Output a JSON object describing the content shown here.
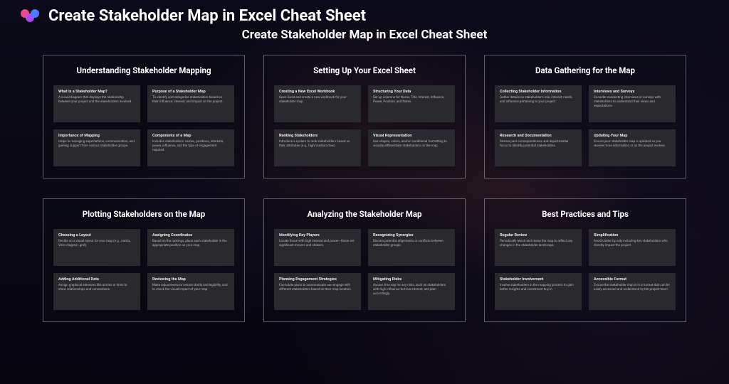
{
  "header": {
    "title": "Create Stakeholder Map in Excel Cheat Sheet",
    "subtitle": "Create Stakeholder Map in Excel Cheat Sheet"
  },
  "logo": {
    "colors": {
      "left": "#e94b8b",
      "mid": "#b84bff",
      "right": "#4b7bff"
    }
  },
  "panels": [
    {
      "title": "Understanding Stakeholder Mapping",
      "cards": [
        {
          "title": "What is a Stakeholder Map?",
          "body": "A visual diagram that displays the relationship between your project and the stakeholders involved."
        },
        {
          "title": "Purpose of a Stakeholder Map",
          "body": "To identify and categorize stakeholders based on their influence, interest, and impact on the project."
        },
        {
          "title": "Importance of Mapping",
          "body": "Helps in managing expectations, communication, and gaining support from various stakeholder groups."
        },
        {
          "title": "Components of a Map",
          "body": "Includes stakeholders' names, positions, interests, power, influence, and the type of engagement required."
        }
      ]
    },
    {
      "title": "Setting Up Your Excel Sheet",
      "cards": [
        {
          "title": "Creating a New Excel Workbook",
          "body": "Open Excel and create a new workbook for your stakeholder map."
        },
        {
          "title": "Structuring Your Data",
          "body": "Set up columns for Name, Title, Interest, Influence, Power, Position, and Notes."
        },
        {
          "title": "Ranking Stakeholders",
          "body": "Introduce a system to rank stakeholders based on their attributes (e.g., high/medium/low)."
        },
        {
          "title": "Visual Representation",
          "body": "Use shapes, colors, and/or conditional formatting to visually differentiate stakeholders on the map."
        }
      ]
    },
    {
      "title": "Data Gathering for the Map",
      "cards": [
        {
          "title": "Collecting Stakeholder Information",
          "body": "Gather details on stakeholder's role, interest, needs, and influence pertaining to your project."
        },
        {
          "title": "Interviews and Surveys",
          "body": "Consider conducting interviews or surveys with stakeholders to understand their views and expectations."
        },
        {
          "title": "Research and Documentation",
          "body": "Review past correspondences and departmental focus to identify potential stakeholders."
        },
        {
          "title": "Updating Your Map",
          "body": "Ensure your stakeholder map is updated as you receive more information or as the project evolves."
        }
      ]
    },
    {
      "title": "Plotting Stakeholders on the Map",
      "cards": [
        {
          "title": "Choosing a Layout",
          "body": "Decide on a visual layout for your map (e.g., matrix, Venn diagram, grid)."
        },
        {
          "title": "Assigning Coordinates",
          "body": "Based on the rankings, place each stakeholder in the appropriate position on your map."
        },
        {
          "title": "Adding Additional Data",
          "body": "Assign graphical elements like arrows or lines to show relationships and connections."
        },
        {
          "title": "Reviewing the Map",
          "body": "Make adjustments to ensure clarity and legibility, and to check the visual impact of your map."
        }
      ]
    },
    {
      "title": "Analyzing the Stakeholder Map",
      "cards": [
        {
          "title": "Identifying Key Players",
          "body": "Locate those with high interest and power—these are significant movers and shakers."
        },
        {
          "title": "Recognizing Synergies",
          "body": "Discern potential alignments or conflicts between stakeholder groups."
        },
        {
          "title": "Planning Engagement Strategies",
          "body": "Formulate plans to communicate and engage with different stakeholders based on their map location."
        },
        {
          "title": "Mitigating Risks",
          "body": "Assess the map for any risks, such as stakeholders with high influence but low interest, and plan accordingly."
        }
      ]
    },
    {
      "title": "Best Practices and Tips",
      "cards": [
        {
          "title": "Regular Review",
          "body": "Periodically revisit and revise the map to reflect any changes in the stakeholder landscape."
        },
        {
          "title": "Simplification",
          "body": "Avoid clutter by only including key stakeholders who directly impact the project."
        },
        {
          "title": "Stakeholder Involvement",
          "body": "Involve stakeholders in the mapping process to gain better insights and investment buy-in."
        },
        {
          "title": "Accessible Format",
          "body": "Ensure the stakeholder map is in a format that can be easily accessed and understood by the project team."
        }
      ]
    }
  ]
}
